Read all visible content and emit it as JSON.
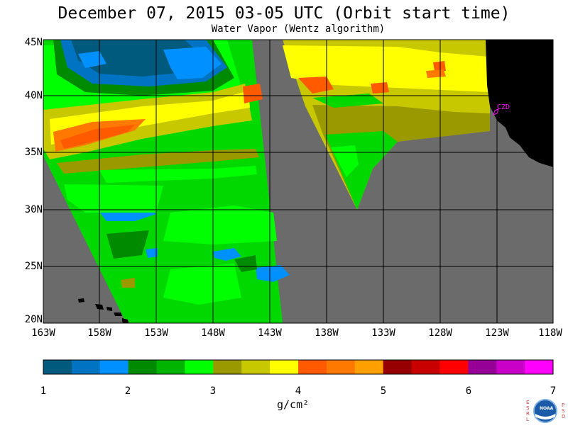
{
  "title": "December 07, 2015  03-05 UTC  (Orbit start time)",
  "subtitle": "Water Vapor (Wentz algorithm)",
  "lat_labels": [
    "45N",
    "40N",
    "35N",
    "30N",
    "25N",
    "20N"
  ],
  "lon_labels": [
    "163W",
    "158W",
    "153W",
    "148W",
    "143W",
    "138W",
    "133W",
    "128W",
    "123W",
    "118W"
  ],
  "station_label": "CZD",
  "colorbar": {
    "ticks": [
      "1",
      "2",
      "3",
      "4",
      "5",
      "6",
      "7"
    ],
    "unit": "g/cm²",
    "colors": [
      "#005a7d",
      "#0073c2",
      "#0090ff",
      "#008a00",
      "#00b400",
      "#00ff00",
      "#9a9a00",
      "#c8c800",
      "#ffff00",
      "#ff5a00",
      "#ff7800",
      "#ffa000",
      "#960000",
      "#c80000",
      "#ff0000",
      "#960096",
      "#c800c8",
      "#ff00ff"
    ]
  },
  "colors": {
    "no_data": "#6b6b6b",
    "land": "#000000"
  },
  "logo_letters": {
    "left": "ESRL",
    "right": "PSD",
    "center": "NOAA"
  }
}
